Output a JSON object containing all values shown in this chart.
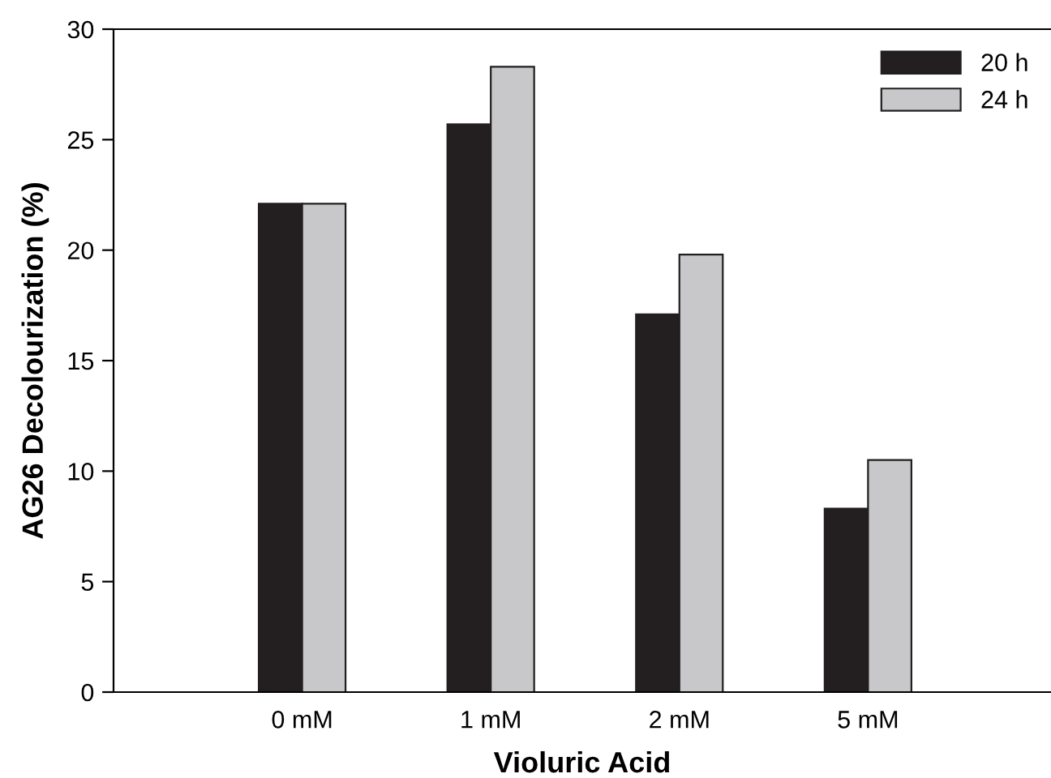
{
  "chart_data": {
    "type": "bar",
    "xlabel": "Violuric Acid",
    "ylabel": "AG26 Decolourization (%)",
    "categories": [
      "0 mM",
      "1 mM",
      "2 mM",
      "5 mM"
    ],
    "series": [
      {
        "name": "20 h",
        "color": "#231f20",
        "values": [
          22.1,
          25.7,
          17.1,
          8.3
        ]
      },
      {
        "name": "24 h",
        "color": "#c8c8ca",
        "values": [
          22.1,
          28.3,
          19.8,
          10.5
        ]
      }
    ],
    "ylim": [
      0,
      30
    ],
    "yticks": [
      0,
      5,
      10,
      15,
      20,
      25,
      30
    ],
    "grid": false,
    "legend": "top right"
  }
}
